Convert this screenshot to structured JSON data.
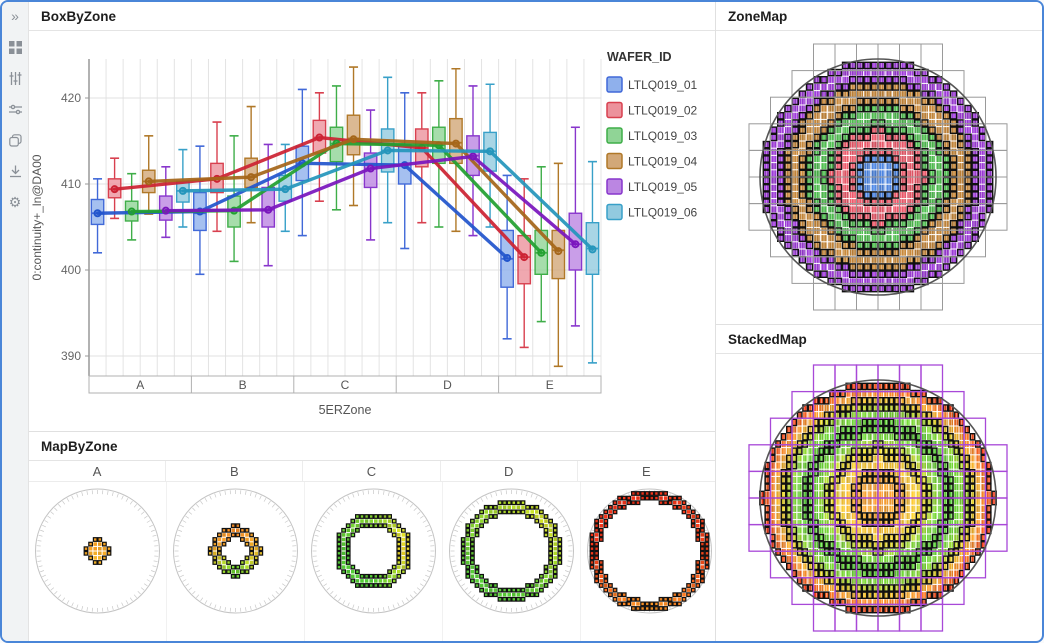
{
  "window": {
    "border_color": "#4a86d8"
  },
  "sidebar": {
    "icons": [
      "expand-icon",
      "grid-icon",
      "vertical-sliders-icon",
      "horizontal-sliders-icon",
      "layers-icon",
      "download-icon",
      "gear-icon"
    ]
  },
  "panels": {
    "boxbyzone": {
      "title": "BoxByZone"
    },
    "zonemap": {
      "title": "ZoneMap"
    },
    "stackedmap": {
      "title": "StackedMap"
    },
    "mapbyzone": {
      "title": "MapByZone"
    }
  },
  "chart_data": {
    "type": "grouped_boxplot_with_mean_lines",
    "title": "BoxByZone",
    "xlabel": "5ERZone",
    "ylabel": "0:continuity+_ln@DA00",
    "legend_title": "WAFER_ID",
    "categories": [
      "A",
      "B",
      "C",
      "D",
      "E"
    ],
    "yticks": [
      390,
      400,
      410,
      420
    ],
    "ylim": [
      385,
      427
    ],
    "series": [
      {
        "name": "LTLQ019_01",
        "fill": "#8fb0ec",
        "stroke": "#4169d8",
        "line": "#2255cc",
        "boxes": [
          [
            402.0,
            405.3,
            406.6,
            408.2,
            410.6
          ],
          [
            399.5,
            404.6,
            406.6,
            409.0,
            414.4
          ],
          [
            404.0,
            410.4,
            412.4,
            414.4,
            421.0
          ],
          [
            402.5,
            410.0,
            412.3,
            414.6,
            420.6
          ],
          [
            392.0,
            398.0,
            401.3,
            404.6,
            411.0
          ]
        ],
        "means": [
          406.6,
          406.8,
          412.4,
          412.2,
          401.4
        ]
      },
      {
        "name": "LTLQ019_02",
        "fill": "#ec929c",
        "stroke": "#d8404f",
        "line": "#cc2233",
        "boxes": [
          [
            406.0,
            408.4,
            409.4,
            410.6,
            413.0
          ],
          [
            404.5,
            409.0,
            410.6,
            412.4,
            417.2
          ],
          [
            408.0,
            413.6,
            415.4,
            417.4,
            420.6
          ],
          [
            405.5,
            412.0,
            414.2,
            416.4,
            420.6
          ],
          [
            391.0,
            398.4,
            401.5,
            404.0,
            410.6
          ]
        ],
        "means": [
          409.4,
          410.6,
          415.4,
          414.2,
          401.5
        ]
      },
      {
        "name": "LTLQ019_03",
        "fill": "#90d496",
        "stroke": "#3fae49",
        "line": "#22a030",
        "boxes": [
          [
            403.5,
            405.7,
            406.8,
            408.0,
            411.2
          ],
          [
            401.0,
            405.0,
            406.9,
            408.6,
            415.6
          ],
          [
            407.0,
            412.6,
            414.7,
            416.6,
            421.4
          ],
          [
            405.0,
            412.4,
            414.5,
            416.6,
            422.0
          ],
          [
            394.0,
            399.5,
            402.0,
            404.6,
            412.0
          ]
        ],
        "means": [
          406.8,
          406.9,
          414.7,
          414.5,
          402.0
        ]
      },
      {
        "name": "LTLQ019_04",
        "fill": "#d2a878",
        "stroke": "#b07828",
        "line": "#a5661a",
        "boxes": [
          [
            406.5,
            409.0,
            410.3,
            411.6,
            415.6
          ],
          [
            405.5,
            409.6,
            410.8,
            413.0,
            419.0
          ],
          [
            407.5,
            413.4,
            415.3,
            418.0,
            423.6
          ],
          [
            404.5,
            412.4,
            414.8,
            417.6,
            423.4
          ],
          [
            388.8,
            399.0,
            402.3,
            404.6,
            412.4
          ]
        ],
        "means": [
          410.3,
          410.8,
          415.2,
          414.7,
          402.2
        ]
      },
      {
        "name": "LTLQ019_05",
        "fill": "#bb86e2",
        "stroke": "#8836cc",
        "line": "#7a16bd",
        "boxes": [
          [
            403.8,
            405.8,
            406.9,
            408.6,
            412.0
          ],
          [
            400.5,
            405.0,
            407.0,
            409.6,
            414.6
          ],
          [
            403.5,
            409.6,
            411.8,
            413.6,
            418.6
          ],
          [
            404.0,
            411.0,
            413.3,
            415.6,
            421.4
          ],
          [
            393.5,
            400.0,
            403.0,
            406.6,
            416.6
          ]
        ],
        "means": [
          406.9,
          407.0,
          411.8,
          413.2,
          403.0
        ]
      },
      {
        "name": "LTLQ019_06",
        "fill": "#92cadf",
        "stroke": "#38a0c8",
        "line": "#2596bb",
        "boxes": [
          [
            405.0,
            407.9,
            409.2,
            410.3,
            414.0
          ],
          [
            404.5,
            408.0,
            409.4,
            411.0,
            414.6
          ],
          [
            405.5,
            411.4,
            413.9,
            416.4,
            422.4
          ],
          [
            405.0,
            411.5,
            413.8,
            416.0,
            421.6
          ],
          [
            389.2,
            399.5,
            402.5,
            405.5,
            412.6
          ]
        ],
        "means": [
          409.2,
          409.4,
          413.9,
          413.8,
          402.4
        ]
      }
    ]
  },
  "maps": {
    "zonemap": {
      "mode": "zone",
      "zone_fractions": [
        0.2,
        0.4,
        0.6,
        0.8,
        1.001
      ],
      "zone_colors": [
        "#4a80d8",
        "#e05565",
        "#4cb44c",
        "#be8238",
        "#9638ce"
      ],
      "reticle_color": "#9a9a9a"
    },
    "stackedmap": {
      "mode": "radial",
      "zone_fractions": [
        0.2,
        0.4,
        0.6,
        0.8,
        1.001
      ],
      "radial_stops": [
        [
          0,
          "#f09430"
        ],
        [
          0.17,
          "#f0a030"
        ],
        [
          0.3,
          "#f0c030"
        ],
        [
          0.42,
          "#e0d82c"
        ],
        [
          0.5,
          "#70c832"
        ],
        [
          0.62,
          "#52c436"
        ],
        [
          0.72,
          "#78cc30"
        ],
        [
          0.8,
          "#d8c828"
        ],
        [
          0.88,
          "#f09028"
        ],
        [
          0.95,
          "#e84c1c"
        ],
        [
          1,
          "#e82c14"
        ]
      ],
      "reticle_color": "#a848d8"
    },
    "mapbyzone": {
      "zones": [
        {
          "label": "A",
          "r_in": 0.0,
          "r_out": 0.21,
          "angular_stops": [
            [
              0,
              "#f5a020"
            ],
            [
              120,
              "#f0a828"
            ],
            [
              200,
              "#f0b028"
            ],
            [
              300,
              "#ee9820"
            ],
            [
              360,
              "#f5a020"
            ]
          ]
        },
        {
          "label": "B",
          "r_in": 0.2,
          "r_out": 0.42,
          "angular_stops": [
            [
              0,
              "#f08828"
            ],
            [
              80,
              "#f0b028"
            ],
            [
              140,
              "#b0d428"
            ],
            [
              180,
              "#60c830"
            ],
            [
              220,
              "#a8d428"
            ],
            [
              280,
              "#f0a428"
            ],
            [
              360,
              "#f08828"
            ]
          ]
        },
        {
          "label": "C",
          "r_in": 0.4,
          "r_out": 0.62,
          "angular_stops": [
            [
              0,
              "#80cc30"
            ],
            [
              60,
              "#d8d828"
            ],
            [
              95,
              "#e8d028"
            ],
            [
              135,
              "#98d028"
            ],
            [
              180,
              "#50c434"
            ],
            [
              270,
              "#50c434"
            ],
            [
              330,
              "#72c830"
            ],
            [
              360,
              "#80cc30"
            ]
          ]
        },
        {
          "label": "D",
          "r_in": 0.6,
          "r_out": 0.82,
          "angular_stops": [
            [
              0,
              "#b0d428"
            ],
            [
              50,
              "#ccd828"
            ],
            [
              95,
              "#a8d028"
            ],
            [
              140,
              "#68c830"
            ],
            [
              180,
              "#55c535"
            ],
            [
              250,
              "#55c535"
            ],
            [
              300,
              "#80cc30"
            ],
            [
              360,
              "#b0d428"
            ]
          ]
        },
        {
          "label": "E",
          "r_in": 0.8,
          "r_out": 1.0,
          "angular_stops": [
            [
              0,
              "#e83018"
            ],
            [
              90,
              "#e84018"
            ],
            [
              150,
              "#f07c20"
            ],
            [
              180,
              "#f09024"
            ],
            [
              215,
              "#f07820"
            ],
            [
              270,
              "#e83418"
            ],
            [
              360,
              "#e83018"
            ]
          ]
        }
      ]
    }
  }
}
